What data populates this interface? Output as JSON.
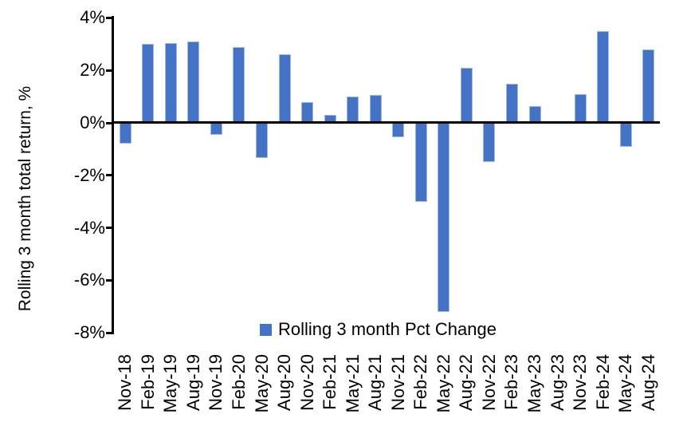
{
  "chart_data": {
    "type": "bar",
    "title": "",
    "xlabel": "",
    "ylabel": "Rolling 3 month total return, %",
    "legend": "Rolling 3 month Pct Change",
    "legend_position": "bottom-center",
    "grid": false,
    "ylim": [
      -8,
      4
    ],
    "ytick_values": [
      4,
      2,
      0,
      -2,
      -4,
      -6,
      -8
    ],
    "ytick_labels": [
      "4%",
      "2%",
      "0%",
      "-2%",
      "-4%",
      "-6%",
      "-8%"
    ],
    "bar_color": "#4472C4",
    "bar_border_color": "#9FB9E6",
    "axis_color": "#000000",
    "categories": [
      "Nov-18",
      "Feb-19",
      "May-19",
      "Aug-19",
      "Nov-19",
      "Feb-20",
      "May-20",
      "Aug-20",
      "Nov-20",
      "Feb-21",
      "May-21",
      "Aug-21",
      "Nov-21",
      "Feb-22",
      "May-22",
      "Aug-22",
      "Nov-22",
      "Feb-23",
      "May-23",
      "Aug-23",
      "Nov-23",
      "Feb-24",
      "May-24",
      "Aug-24"
    ],
    "values": [
      -0.8,
      3.0,
      3.05,
      3.1,
      -0.45,
      2.9,
      -1.35,
      2.6,
      0.8,
      0.3,
      1.0,
      1.05,
      -0.55,
      -3.0,
      -7.2,
      2.1,
      -1.5,
      1.5,
      0.65,
      0.0,
      1.1,
      3.5,
      -0.9,
      2.8
    ]
  }
}
